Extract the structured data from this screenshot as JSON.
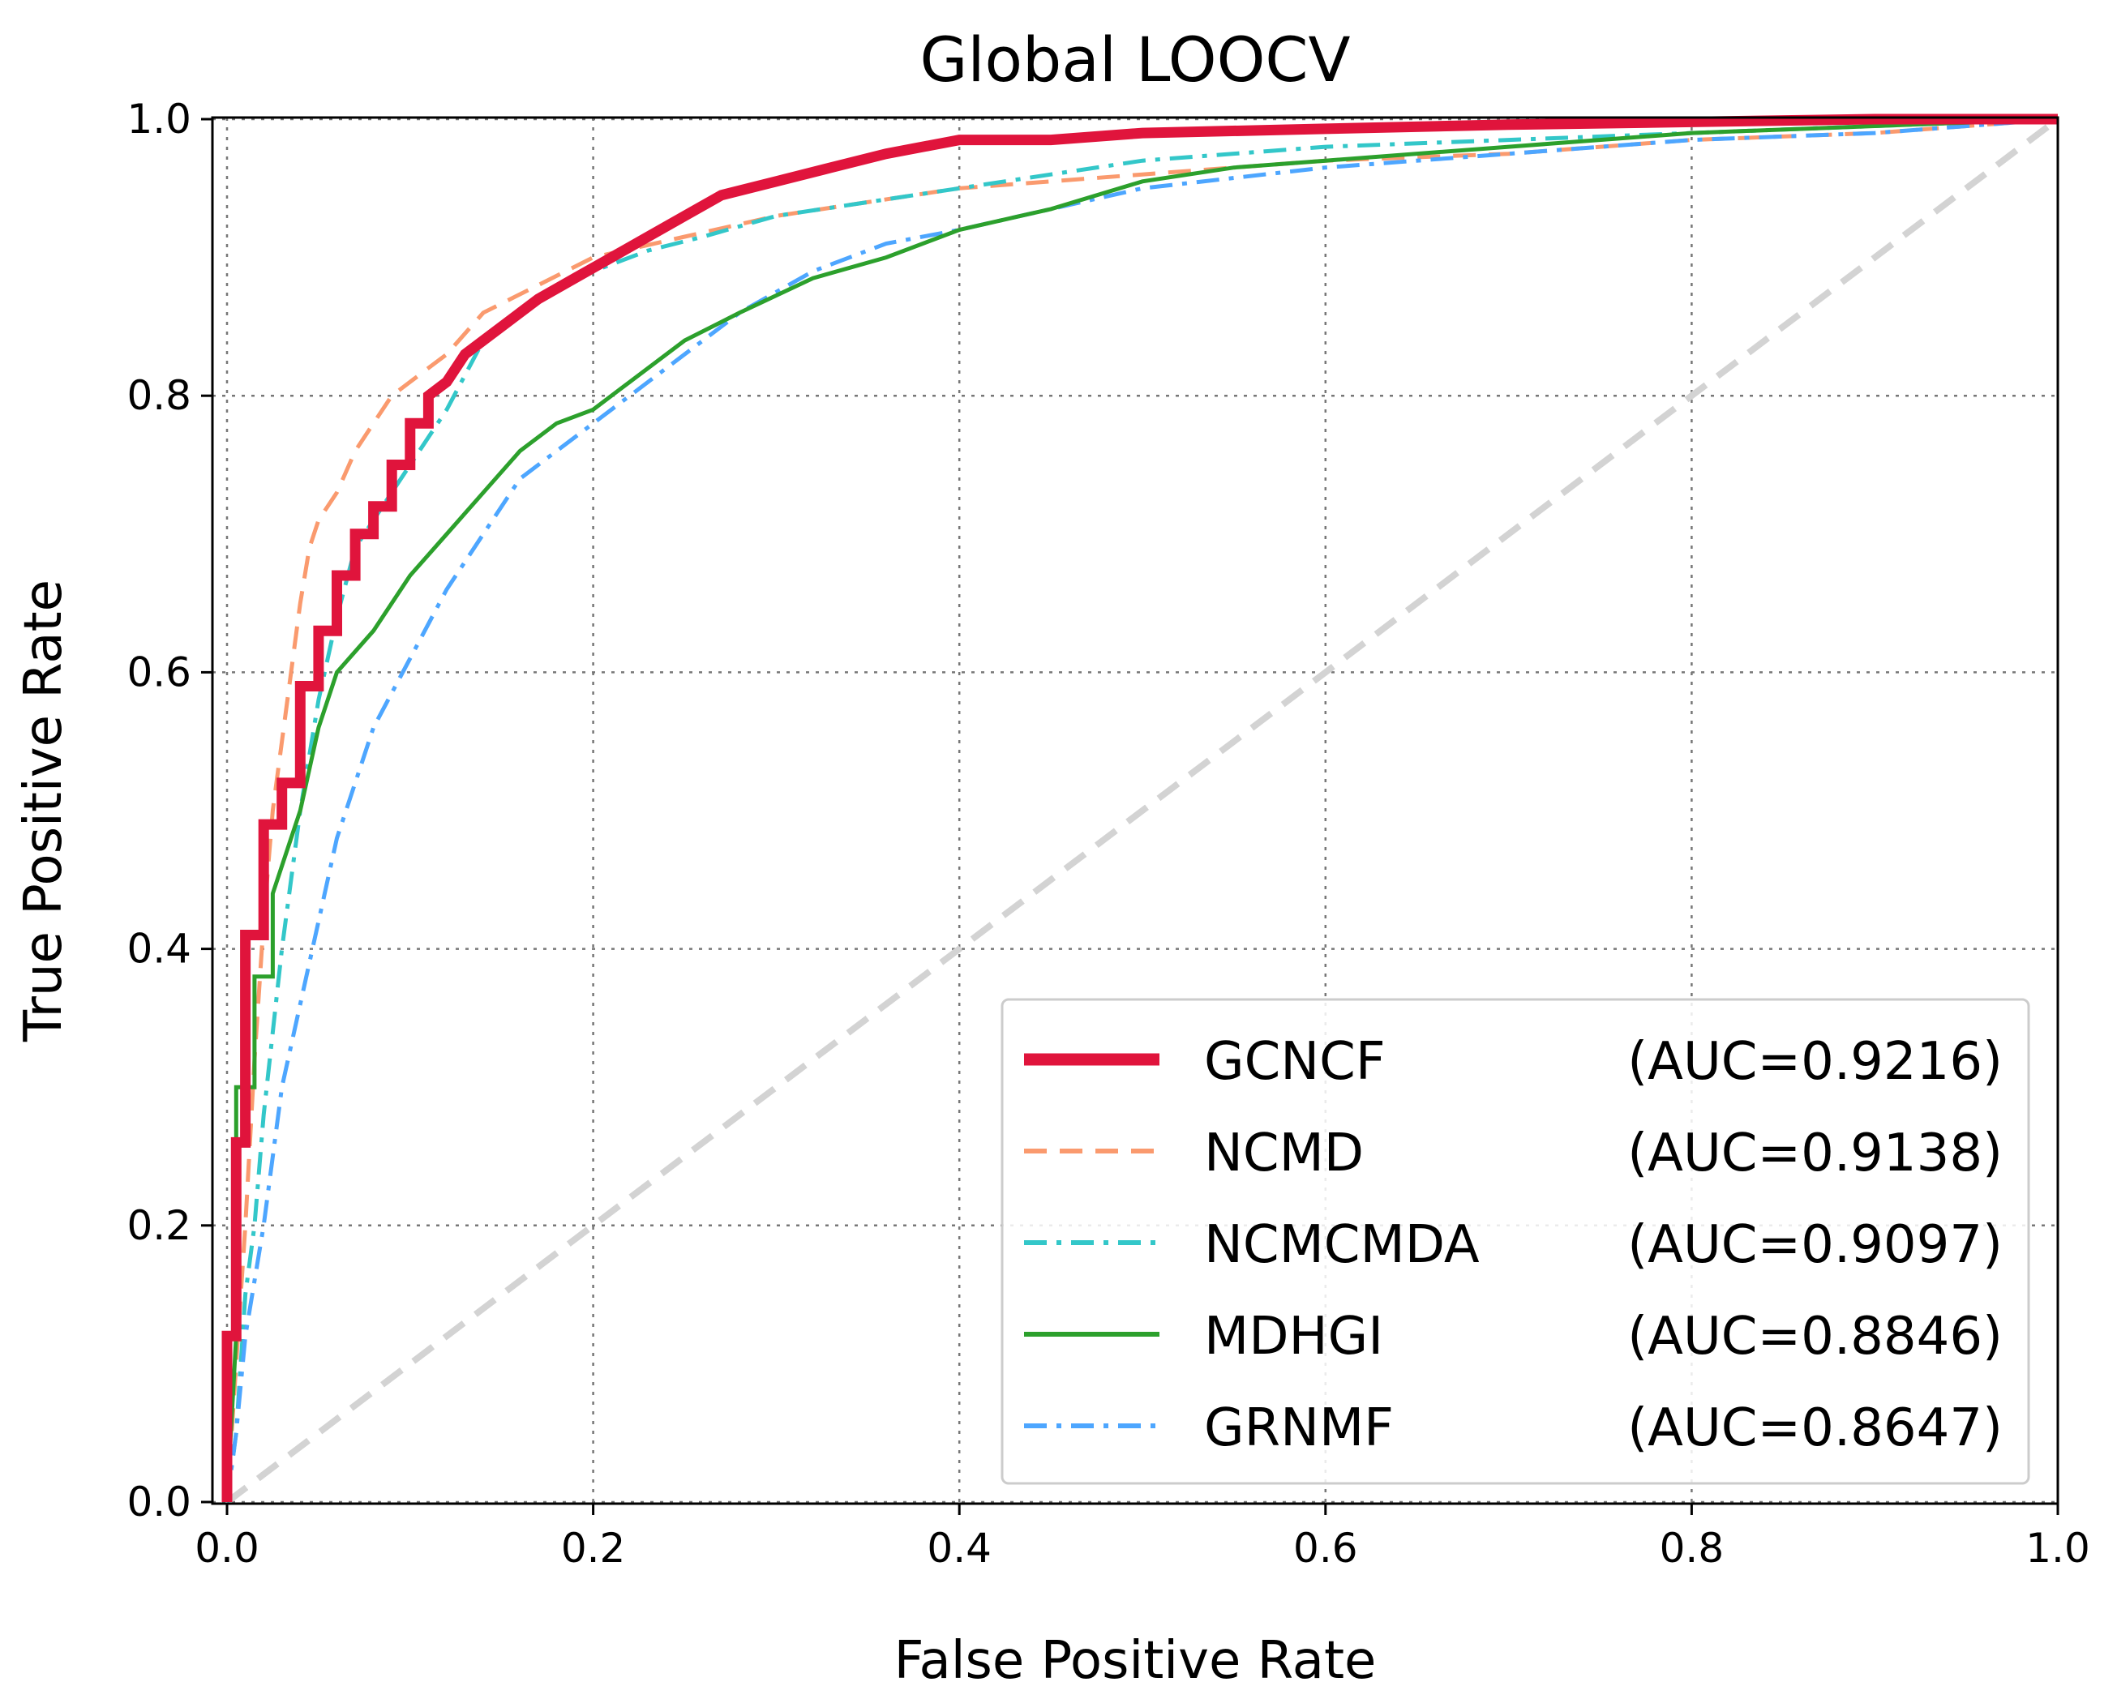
{
  "chart_data": {
    "type": "line",
    "title": "Global LOOCV",
    "xlabel": "False Positive Rate",
    "ylabel": "True Positive Rate",
    "xlim": [
      0.0,
      1.0
    ],
    "ylim": [
      0.0,
      1.0
    ],
    "xticks": [
      "0.0",
      "0.2",
      "0.4",
      "0.6",
      "0.8",
      "1.0"
    ],
    "yticks": [
      "0.0",
      "0.2",
      "0.4",
      "0.6",
      "0.8",
      "1.0"
    ],
    "grid": true,
    "legend_position": "lower-right",
    "reference_line": {
      "name": "chance",
      "x": [
        0,
        1
      ],
      "y": [
        0,
        1
      ],
      "color": "#d3d3d3",
      "style": "dashed"
    },
    "series": [
      {
        "name": "GCNCF",
        "auc_label": "(AUC=0.9216)",
        "color": "#e0143c",
        "style": "solid",
        "width": "thick",
        "x": [
          0.0,
          0.0,
          0.005,
          0.005,
          0.01,
          0.01,
          0.02,
          0.02,
          0.03,
          0.03,
          0.04,
          0.04,
          0.05,
          0.05,
          0.06,
          0.06,
          0.07,
          0.07,
          0.08,
          0.08,
          0.09,
          0.09,
          0.1,
          0.1,
          0.11,
          0.11,
          0.12,
          0.13,
          0.15,
          0.17,
          0.19,
          0.21,
          0.23,
          0.25,
          0.27,
          0.3,
          0.33,
          0.36,
          0.4,
          0.45,
          0.5,
          0.6,
          0.7,
          0.8,
          0.9,
          1.0
        ],
        "y": [
          0.0,
          0.12,
          0.12,
          0.26,
          0.26,
          0.41,
          0.41,
          0.49,
          0.49,
          0.52,
          0.52,
          0.59,
          0.59,
          0.63,
          0.63,
          0.67,
          0.67,
          0.7,
          0.7,
          0.72,
          0.72,
          0.75,
          0.75,
          0.78,
          0.78,
          0.8,
          0.81,
          0.83,
          0.85,
          0.87,
          0.885,
          0.9,
          0.915,
          0.93,
          0.945,
          0.955,
          0.965,
          0.975,
          0.985,
          0.985,
          0.99,
          0.993,
          0.996,
          0.998,
          1.0,
          1.0
        ]
      },
      {
        "name": "NCMD",
        "auc_label": "(AUC=0.9138)",
        "color": "#fa9a6e",
        "style": "dashed",
        "width": "normal",
        "x": [
          0.0,
          0.005,
          0.01,
          0.015,
          0.02,
          0.025,
          0.03,
          0.035,
          0.04,
          0.045,
          0.05,
          0.06,
          0.07,
          0.08,
          0.09,
          0.1,
          0.12,
          0.14,
          0.17,
          0.2,
          0.25,
          0.3,
          0.35,
          0.4,
          0.5,
          0.6,
          0.7,
          0.8,
          0.9,
          1.0
        ],
        "y": [
          0.0,
          0.1,
          0.2,
          0.32,
          0.42,
          0.5,
          0.55,
          0.6,
          0.65,
          0.69,
          0.71,
          0.73,
          0.76,
          0.78,
          0.8,
          0.81,
          0.83,
          0.86,
          0.88,
          0.9,
          0.915,
          0.93,
          0.94,
          0.95,
          0.96,
          0.97,
          0.975,
          0.985,
          0.99,
          1.0
        ]
      },
      {
        "name": "NCMCMDA",
        "auc_label": "(AUC=0.9097)",
        "color": "#33c7c9",
        "style": "dashdot",
        "width": "normal",
        "x": [
          0.0,
          0.005,
          0.01,
          0.015,
          0.02,
          0.03,
          0.04,
          0.05,
          0.06,
          0.07,
          0.08,
          0.09,
          0.1,
          0.12,
          0.14,
          0.17,
          0.2,
          0.23,
          0.26,
          0.3,
          0.35,
          0.4,
          0.45,
          0.5,
          0.6,
          0.7,
          0.8,
          0.9,
          1.0
        ],
        "y": [
          0.0,
          0.05,
          0.15,
          0.2,
          0.28,
          0.4,
          0.5,
          0.58,
          0.64,
          0.69,
          0.71,
          0.73,
          0.75,
          0.79,
          0.84,
          0.87,
          0.89,
          0.905,
          0.915,
          0.93,
          0.94,
          0.95,
          0.96,
          0.97,
          0.98,
          0.985,
          0.99,
          0.995,
          1.0
        ]
      },
      {
        "name": "MDHGI",
        "auc_label": "(AUC=0.8846)",
        "color": "#2ca02c",
        "style": "solid",
        "width": "normal",
        "x": [
          0.0,
          0.005,
          0.005,
          0.015,
          0.015,
          0.025,
          0.025,
          0.04,
          0.05,
          0.06,
          0.08,
          0.1,
          0.12,
          0.14,
          0.16,
          0.18,
          0.2,
          0.22,
          0.25,
          0.28,
          0.32,
          0.36,
          0.4,
          0.45,
          0.5,
          0.55,
          0.6,
          0.7,
          0.8,
          0.9,
          1.0
        ],
        "y": [
          0.0,
          0.12,
          0.3,
          0.3,
          0.38,
          0.38,
          0.44,
          0.5,
          0.56,
          0.6,
          0.63,
          0.67,
          0.7,
          0.73,
          0.76,
          0.78,
          0.79,
          0.81,
          0.84,
          0.86,
          0.885,
          0.9,
          0.92,
          0.935,
          0.955,
          0.965,
          0.97,
          0.98,
          0.99,
          0.995,
          1.0
        ]
      },
      {
        "name": "GRNMF",
        "auc_label": "(AUC=0.8647)",
        "color": "#4da6ff",
        "style": "dashdot",
        "width": "normal",
        "x": [
          0.0,
          0.005,
          0.01,
          0.02,
          0.03,
          0.04,
          0.05,
          0.06,
          0.08,
          0.1,
          0.12,
          0.14,
          0.16,
          0.18,
          0.2,
          0.22,
          0.25,
          0.28,
          0.32,
          0.36,
          0.4,
          0.45,
          0.5,
          0.6,
          0.7,
          0.8,
          0.9,
          1.0
        ],
        "y": [
          0.0,
          0.05,
          0.12,
          0.2,
          0.3,
          0.36,
          0.42,
          0.48,
          0.56,
          0.61,
          0.66,
          0.7,
          0.74,
          0.76,
          0.78,
          0.8,
          0.83,
          0.86,
          0.89,
          0.91,
          0.92,
          0.935,
          0.95,
          0.965,
          0.975,
          0.985,
          0.99,
          1.0
        ]
      }
    ]
  }
}
